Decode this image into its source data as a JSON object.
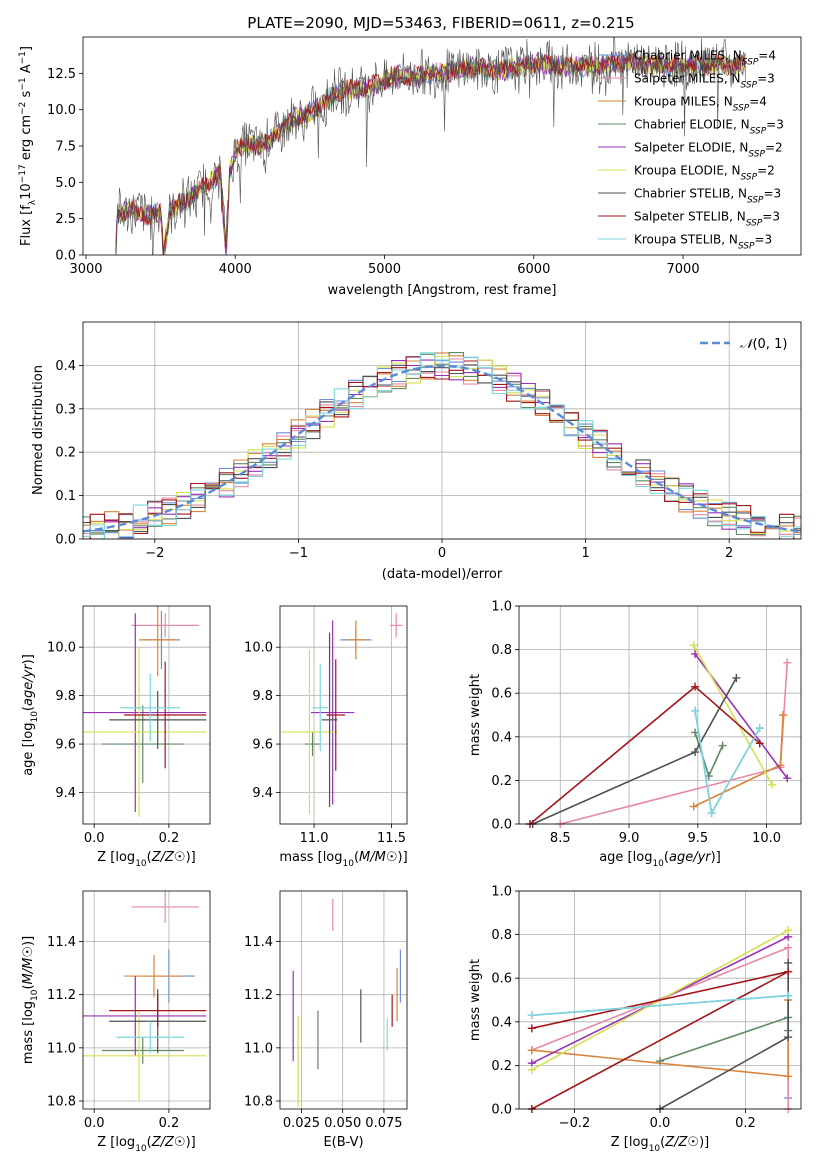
{
  "title": "PLATE=2090, MJD=53463, FIBERID=0611, z=0.215",
  "colors": {
    "chabrier_miles": "#6b8fd6",
    "salpeter_miles": "#e68aa8",
    "kroupa_miles": "#d9843a",
    "chabrier_elodie": "#5f8a64",
    "salpeter_elodie": "#9a30b8",
    "kroupa_elodie": "#d6e050",
    "chabrier_stelib": "#505050",
    "salpeter_stelib": "#a3161d",
    "kroupa_stelib": "#7fd6dc",
    "normal": "#5b8bd6",
    "grid": "#b0b0b0"
  },
  "chart_data": [
    {
      "id": "spectrum",
      "type": "line",
      "xlabel": "wavelength [Angstrom, rest frame]",
      "ylabel": "Flux [f_λ 10^-17 erg cm^-2 s^-1 A^-1]",
      "xlim": [
        2980,
        7790
      ],
      "ylim": [
        0,
        15.0
      ],
      "xticks": [
        "3000",
        "4000",
        "5000",
        "6000",
        "7000"
      ],
      "yticks": [
        "0.0",
        "2.5",
        "5.0",
        "7.5",
        "10.0",
        "12.5"
      ],
      "grid": false,
      "legend_position": "upper-right",
      "x_range_data": [
        3200,
        7420
      ],
      "envelope": [
        [
          3200,
          0.0
        ],
        [
          3210,
          2.8
        ],
        [
          3300,
          3.2
        ],
        [
          3400,
          2.7
        ],
        [
          3500,
          2.9
        ],
        [
          3520,
          0.0
        ],
        [
          3560,
          3.0
        ],
        [
          3700,
          4.0
        ],
        [
          3800,
          4.8
        ],
        [
          3900,
          5.6
        ],
        [
          3940,
          0.0
        ],
        [
          3960,
          5.5
        ],
        [
          4000,
          7.3
        ],
        [
          4100,
          7.6
        ],
        [
          4200,
          7.6
        ],
        [
          4300,
          8.6
        ],
        [
          4400,
          9.4
        ],
        [
          4500,
          9.7
        ],
        [
          4600,
          10.6
        ],
        [
          4700,
          11.3
        ],
        [
          4800,
          11.4
        ],
        [
          4900,
          11.6
        ],
        [
          5000,
          12.0
        ],
        [
          5100,
          12.4
        ],
        [
          5200,
          12.3
        ],
        [
          5400,
          12.6
        ],
        [
          5600,
          12.9
        ],
        [
          5800,
          12.7
        ],
        [
          6000,
          13.2
        ],
        [
          6200,
          13.0
        ],
        [
          6400,
          13.0
        ],
        [
          6600,
          13.3
        ],
        [
          6800,
          13.1
        ],
        [
          7000,
          13.0
        ],
        [
          7200,
          13.1
        ],
        [
          7420,
          13.1
        ]
      ],
      "series": [
        {
          "name": "Chabrier MILES, N_SSP=4"
        },
        {
          "name": "Salpeter MILES, N_SSP=3"
        },
        {
          "name": "Kroupa MILES, N_SSP=4"
        },
        {
          "name": "Chabrier ELODIE, N_SSP=3"
        },
        {
          "name": "Salpeter ELODIE, N_SSP=2"
        },
        {
          "name": "Kroupa ELODIE, N_SSP=2"
        },
        {
          "name": "Chabrier STELIB, N_SSP=3"
        },
        {
          "name": "Salpeter STELIB, N_SSP=3"
        },
        {
          "name": "Kroupa STELIB, N_SSP=3"
        }
      ]
    },
    {
      "id": "residuals",
      "type": "line",
      "xlabel": "(data-model)/error",
      "ylabel": "Normed distribution",
      "xlim": [
        -2.5,
        2.5
      ],
      "ylim": [
        0,
        0.5
      ],
      "xticks": [
        "−2",
        "−1",
        "0",
        "1",
        "2"
      ],
      "yticks": [
        "0.0",
        "0.1",
        "0.2",
        "0.3",
        "0.4"
      ],
      "grid": true,
      "legend_position": "upper-right",
      "legend": "N(0,1)",
      "bin_width": 0.1
    },
    {
      "id": "age_vs_Z",
      "type": "scatter",
      "xlabel": "Z [log10(Z/Z☉)]",
      "ylabel": "age  [log10(age/yr)]",
      "xlim": [
        -0.03,
        0.31
      ],
      "ylim": [
        9.27,
        10.17
      ],
      "xticks": [
        "0.0",
        "0.2"
      ],
      "yticks": [
        "9.4",
        "9.6",
        "9.8",
        "10.0"
      ],
      "grid": true,
      "points": [
        {
          "x": 0.18,
          "y": 10.03,
          "dx": 0.05,
          "dy": 0.12
        },
        {
          "x": 0.19,
          "y": 10.09,
          "dx": 0.09,
          "dy": 0.05
        },
        {
          "x": 0.17,
          "y": 10.03,
          "dx": 0.05,
          "dy": 0.15
        },
        {
          "x": 0.13,
          "y": 9.6,
          "dx": 0.11,
          "dy": 0.16
        },
        {
          "x": 0.11,
          "y": 9.73,
          "dx": 0.19,
          "dy": 0.41
        },
        {
          "x": 0.12,
          "y": 9.65,
          "dx": 0.18,
          "dy": 0.35
        },
        {
          "x": 0.17,
          "y": 9.7,
          "dx": 0.13,
          "dy": 0.12
        },
        {
          "x": 0.19,
          "y": 9.72,
          "dx": 0.11,
          "dy": 0.22
        },
        {
          "x": 0.15,
          "y": 9.75,
          "dx": 0.08,
          "dy": 0.14
        }
      ]
    },
    {
      "id": "age_vs_mass",
      "type": "scatter",
      "xlabel": "mass [log10(M/M☉)]",
      "ylabel": "",
      "xlim": [
        10.78,
        11.6
      ],
      "ylim": [
        9.27,
        10.17
      ],
      "xticks": [
        "11.0",
        "11.5"
      ],
      "yticks": [
        "9.4",
        "9.6",
        "9.8",
        "10.0"
      ],
      "grid": true,
      "points": [
        {
          "x": 11.27,
          "y": 10.03,
          "dx": 0.1,
          "dy": 0.05
        },
        {
          "x": 11.53,
          "y": 10.09,
          "dx": 0.04,
          "dy": 0.05
        },
        {
          "x": 11.27,
          "y": 10.03,
          "dx": 0.06,
          "dy": 0.08
        },
        {
          "x": 10.99,
          "y": 9.6,
          "dx": 0.05,
          "dy": 0.05
        },
        {
          "x": 11.12,
          "y": 9.73,
          "dx": 0.14,
          "dy": 0.38
        },
        {
          "x": 10.97,
          "y": 9.65,
          "dx": 0.18,
          "dy": 0.34
        },
        {
          "x": 11.1,
          "y": 9.7,
          "dx": 0.05,
          "dy": 0.36
        },
        {
          "x": 11.14,
          "y": 9.72,
          "dx": 0.06,
          "dy": 0.23
        },
        {
          "x": 11.04,
          "y": 9.75,
          "dx": 0.05,
          "dy": 0.18
        }
      ]
    },
    {
      "id": "weight_vs_age",
      "type": "line",
      "xlabel": "age  [log10(age/yr)]",
      "ylabel": "mass weight",
      "xlim": [
        8.2,
        10.25
      ],
      "ylim": [
        0,
        1.0
      ],
      "xticks": [
        "8.5",
        "9.0",
        "9.5",
        "10.0"
      ],
      "yticks": [
        "0.0",
        "0.2",
        "0.4",
        "0.6",
        "0.8",
        "1.0"
      ],
      "grid": true,
      "series": [
        {
          "points": [
            [
              9.48,
              0.52
            ],
            [
              9.6,
              0.05
            ],
            [
              9.95,
              0.44
            ]
          ]
        },
        {
          "points": [
            [
              8.5,
              0.0
            ],
            [
              10.1,
              0.26
            ],
            [
              10.15,
              0.74
            ]
          ]
        },
        {
          "points": [
            [
              9.47,
              0.08
            ],
            [
              10.1,
              0.27
            ],
            [
              10.12,
              0.5
            ]
          ]
        },
        {
          "points": [
            [
              9.48,
              0.42
            ],
            [
              9.58,
              0.22
            ],
            [
              9.68,
              0.36
            ]
          ]
        },
        {
          "points": [
            [
              9.48,
              0.78
            ],
            [
              10.15,
              0.21
            ]
          ]
        },
        {
          "points": [
            [
              9.47,
              0.82
            ],
            [
              10.04,
              0.18
            ]
          ]
        },
        {
          "points": [
            [
              8.3,
              0.0
            ],
            [
              9.48,
              0.33
            ],
            [
              9.78,
              0.67
            ]
          ]
        },
        {
          "points": [
            [
              8.28,
              0.0
            ],
            [
              9.48,
              0.63
            ],
            [
              9.95,
              0.37
            ]
          ]
        },
        {
          "points": [
            [
              9.48,
              0.52
            ],
            [
              9.6,
              0.05
            ],
            [
              9.95,
              0.44
            ]
          ]
        }
      ]
    },
    {
      "id": "mass_vs_Z",
      "type": "scatter",
      "xlabel": "Z [log10(Z/Z☉)]",
      "ylabel": "mass [log10(M/M☉)]",
      "xlim": [
        -0.03,
        0.31
      ],
      "ylim": [
        10.77,
        11.59
      ],
      "xticks": [
        "0.0",
        "0.2"
      ],
      "yticks": [
        "10.8",
        "11.0",
        "11.2",
        "11.4"
      ],
      "grid": true,
      "points": [
        {
          "x": 0.2,
          "y": 11.27,
          "dx": 0.07,
          "dy": 0.1
        },
        {
          "x": 0.19,
          "y": 11.53,
          "dx": 0.09,
          "dy": 0.06
        },
        {
          "x": 0.16,
          "y": 11.27,
          "dx": 0.08,
          "dy": 0.08
        },
        {
          "x": 0.13,
          "y": 10.99,
          "dx": 0.11,
          "dy": 0.05
        },
        {
          "x": 0.11,
          "y": 11.12,
          "dx": 0.19,
          "dy": 0.15
        },
        {
          "x": 0.12,
          "y": 10.97,
          "dx": 0.18,
          "dy": 0.17
        },
        {
          "x": 0.17,
          "y": 11.1,
          "dx": 0.13,
          "dy": 0.12
        },
        {
          "x": 0.17,
          "y": 11.14,
          "dx": 0.13,
          "dy": 0.06
        },
        {
          "x": 0.15,
          "y": 11.04,
          "dx": 0.09,
          "dy": 0.06
        }
      ]
    },
    {
      "id": "mass_vs_ebv",
      "type": "scatter",
      "xlabel": "E(B-V)",
      "ylabel": "",
      "xlim": [
        0.012,
        0.089
      ],
      "ylim": [
        10.77,
        11.59
      ],
      "xticks": [
        "0.025",
        "0.050",
        "0.075"
      ],
      "yticks": [
        "10.8",
        "11.0",
        "11.2",
        "11.4"
      ],
      "grid": true,
      "points": [
        {
          "x": 0.085,
          "y": 11.27,
          "dy": 0.1
        },
        {
          "x": 0.044,
          "y": 11.5,
          "dy": 0.06
        },
        {
          "x": 0.083,
          "y": 11.2,
          "dy": 0.1
        },
        {
          "x": 0.035,
          "y": 11.03,
          "dy": 0.11
        },
        {
          "x": 0.02,
          "y": 11.12,
          "dy": 0.17
        },
        {
          "x": 0.023,
          "y": 10.95,
          "dy": 0.17
        },
        {
          "x": 0.061,
          "y": 11.12,
          "dy": 0.1
        },
        {
          "x": 0.08,
          "y": 11.14,
          "dy": 0.06
        },
        {
          "x": 0.077,
          "y": 11.05,
          "dy": 0.06
        }
      ]
    },
    {
      "id": "weight_vs_Z",
      "type": "line",
      "xlabel": "Z [log10(Z/Z☉)]",
      "ylabel": "mass weight",
      "xlim": [
        -0.33,
        0.33
      ],
      "ylim": [
        0,
        1.0
      ],
      "xticks": [
        "−0.2",
        "0.0",
        "0.2"
      ],
      "yticks": [
        "0.0",
        "0.2",
        "0.4",
        "0.6",
        "0.8",
        "1.0"
      ],
      "grid": true,
      "series": [
        {
          "points": [
            [
              -0.3,
              0.43
            ],
            [
              0.3,
              0.52
            ],
            [
              0.3,
              0.05
            ]
          ]
        },
        {
          "points": [
            [
              -0.3,
              0.27
            ],
            [
              0.3,
              0.74
            ],
            [
              0.3,
              0.0
            ]
          ]
        },
        {
          "points": [
            [
              -0.3,
              0.27
            ],
            [
              0.3,
              0.15
            ],
            [
              0.3,
              0.5
            ]
          ]
        },
        {
          "points": [
            [
              0.0,
              0.22
            ],
            [
              0.3,
              0.42
            ],
            [
              0.3,
              0.36
            ]
          ]
        },
        {
          "points": [
            [
              -0.3,
              0.21
            ],
            [
              0.3,
              0.79
            ]
          ]
        },
        {
          "points": [
            [
              -0.3,
              0.18
            ],
            [
              0.3,
              0.82
            ]
          ]
        },
        {
          "points": [
            [
              0.0,
              0.0
            ],
            [
              0.3,
              0.33
            ],
            [
              0.3,
              0.67
            ]
          ]
        },
        {
          "points": [
            [
              -0.3,
              0.0
            ],
            [
              0.3,
              0.63
            ],
            [
              -0.3,
              0.37
            ]
          ]
        },
        {
          "points": [
            [
              -0.3,
              0.43
            ],
            [
              0.3,
              0.52
            ]
          ]
        }
      ]
    }
  ]
}
